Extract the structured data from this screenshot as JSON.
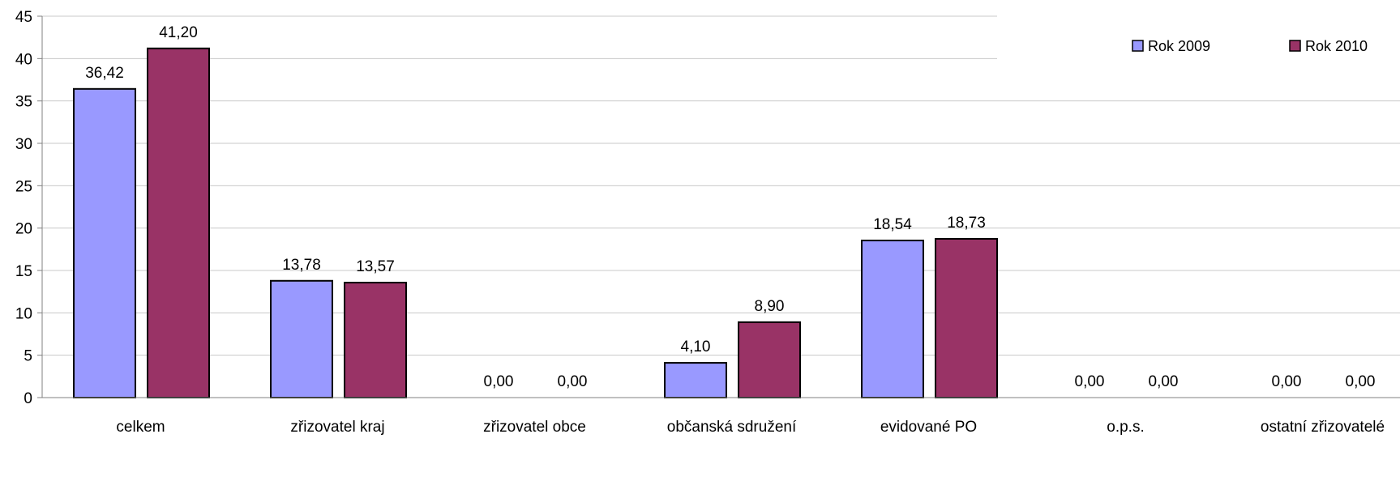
{
  "chart_data": {
    "type": "bar",
    "title": "",
    "xlabel": "",
    "ylabel": "",
    "categories": [
      "celkem",
      "zřizovatel kraj",
      "zřizovatel obce",
      "občanská sdružení",
      "evidované PO",
      "o.p.s.",
      "ostatní zřizovatelé"
    ],
    "series": [
      {
        "name": "Rok 2009",
        "color": "#9999ff",
        "values": [
          36.42,
          13.78,
          0.0,
          4.1,
          18.54,
          0.0,
          0.0
        ],
        "labels": [
          "36,42",
          "13,78",
          "0,00",
          "4,10",
          "18,54",
          "0,00",
          "0,00"
        ]
      },
      {
        "name": "Rok 2010",
        "color": "#993366",
        "values": [
          41.2,
          13.57,
          0.0,
          8.9,
          18.73,
          0.0,
          0.0
        ],
        "labels": [
          "41,20",
          "13,57",
          "0,00",
          "8,90",
          "18,73",
          "0,00",
          "0,00"
        ]
      }
    ],
    "ylim": [
      0,
      45
    ],
    "yticks": [
      "0",
      "5",
      "10",
      "15",
      "20",
      "25",
      "30",
      "35",
      "40",
      "45"
    ],
    "grid": true,
    "legend_position": "top-right"
  }
}
